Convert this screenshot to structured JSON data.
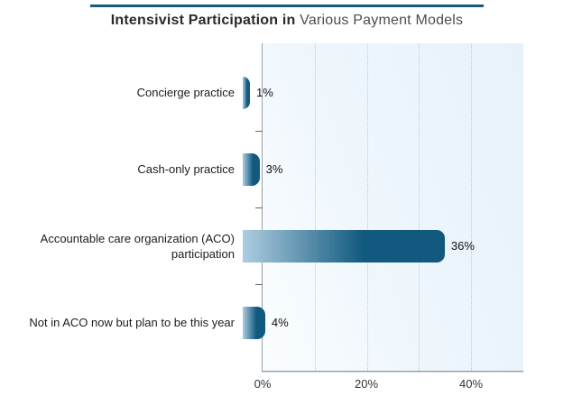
{
  "title": {
    "emphasis": "Intensivist Participation in",
    "rest": " Various Payment Models"
  },
  "chart_data": {
    "type": "bar",
    "orientation": "horizontal",
    "title": "Intensivist Participation in Various Payment Models",
    "categories": [
      "Concierge practice",
      "Cash-only practice",
      "Accountable care organization (ACO) participation",
      "Not in ACO now but plan to be this year"
    ],
    "values": [
      1,
      3,
      36,
      4
    ],
    "value_labels": [
      "1%",
      "3%",
      "36%",
      "4%"
    ],
    "x_axis": {
      "min": 0,
      "max": 50,
      "tick_labels": [
        "0%",
        "20%",
        "40%"
      ],
      "gridline_step_percent": 10,
      "grid_style": "dotted"
    },
    "legend": "none",
    "colors": {
      "bar_dark": "#11597e",
      "bar_light": "#aecde0",
      "title_rule": "#1a5a78",
      "plot_background": "#ebf4fb"
    }
  }
}
